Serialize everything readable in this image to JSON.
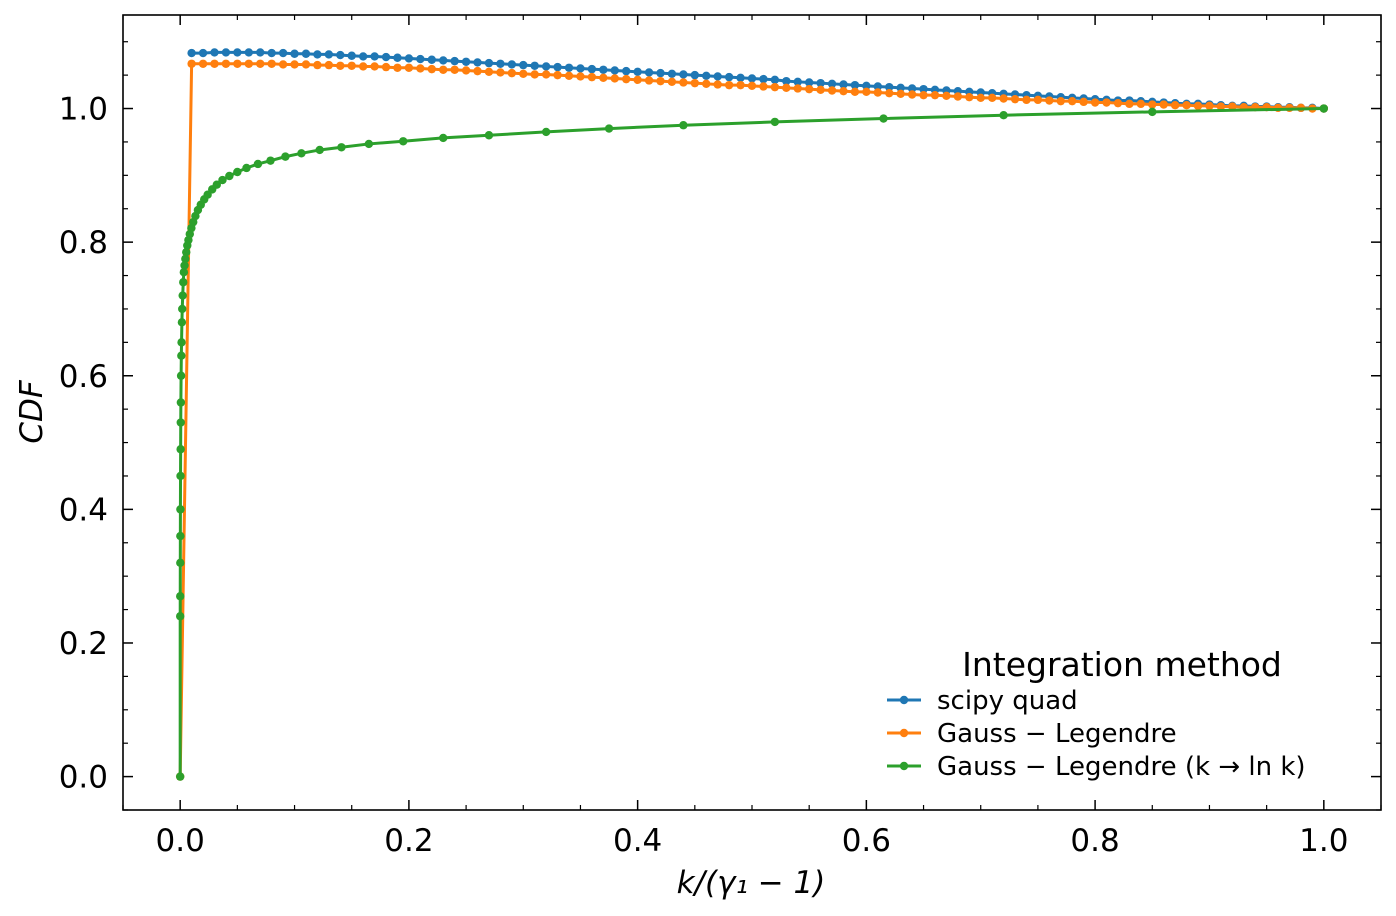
{
  "chart_data": {
    "type": "line",
    "xlabel": "k/(γ₁ − 1)",
    "ylabel": "CDF",
    "xlim": [
      -0.05,
      1.05
    ],
    "ylim": [
      -0.05,
      1.14
    ],
    "xticks": [
      "0.0",
      "0.2",
      "0.4",
      "0.6",
      "0.8",
      "1.0"
    ],
    "yticks": [
      "0.0",
      "0.2",
      "0.4",
      "0.6",
      "0.8",
      "1.0"
    ],
    "grid": false,
    "legend": {
      "title": "Integration method",
      "position": "lower-right"
    },
    "series": [
      {
        "name": "scipy quad",
        "color": "#1f77b4",
        "marker": "circle",
        "x": [
          0.01,
          0.02,
          0.03,
          0.04,
          0.05,
          0.06,
          0.07,
          0.08,
          0.09,
          0.1,
          0.11,
          0.12,
          0.13,
          0.14,
          0.15,
          0.16,
          0.17,
          0.18,
          0.19,
          0.2,
          0.21,
          0.22,
          0.23,
          0.24,
          0.25,
          0.26,
          0.27,
          0.28,
          0.29,
          0.3,
          0.31,
          0.32,
          0.33,
          0.34,
          0.35,
          0.36,
          0.37,
          0.38,
          0.39,
          0.4,
          0.41,
          0.42,
          0.43,
          0.44,
          0.45,
          0.46,
          0.47,
          0.48,
          0.49,
          0.5,
          0.51,
          0.52,
          0.53,
          0.54,
          0.55,
          0.56,
          0.57,
          0.58,
          0.59,
          0.6,
          0.61,
          0.62,
          0.63,
          0.64,
          0.65,
          0.66,
          0.67,
          0.68,
          0.69,
          0.7,
          0.71,
          0.72,
          0.73,
          0.74,
          0.75,
          0.76,
          0.77,
          0.78,
          0.79,
          0.8,
          0.81,
          0.82,
          0.83,
          0.84,
          0.85,
          0.86,
          0.87,
          0.88,
          0.89,
          0.9,
          0.91,
          0.92,
          0.93,
          0.94,
          0.95,
          0.96,
          0.97,
          0.98,
          0.99,
          1.0
        ],
        "y": [
          1.083,
          1.083,
          1.084,
          1.084,
          1.084,
          1.084,
          1.084,
          1.083,
          1.083,
          1.082,
          1.082,
          1.081,
          1.081,
          1.08,
          1.079,
          1.078,
          1.078,
          1.077,
          1.076,
          1.075,
          1.074,
          1.073,
          1.072,
          1.071,
          1.07,
          1.069,
          1.068,
          1.067,
          1.066,
          1.065,
          1.064,
          1.063,
          1.062,
          1.061,
          1.06,
          1.059,
          1.058,
          1.057,
          1.056,
          1.055,
          1.054,
          1.053,
          1.052,
          1.051,
          1.05,
          1.049,
          1.048,
          1.047,
          1.046,
          1.045,
          1.044,
          1.043,
          1.041,
          1.04,
          1.039,
          1.038,
          1.037,
          1.036,
          1.035,
          1.034,
          1.033,
          1.032,
          1.031,
          1.03,
          1.029,
          1.028,
          1.027,
          1.026,
          1.025,
          1.024,
          1.023,
          1.022,
          1.021,
          1.02,
          1.019,
          1.018,
          1.017,
          1.016,
          1.015,
          1.014,
          1.013,
          1.012,
          1.012,
          1.011,
          1.01,
          1.009,
          1.008,
          1.007,
          1.007,
          1.006,
          1.005,
          1.004,
          1.004,
          1.003,
          1.003,
          1.002,
          1.002,
          1.001,
          1.001,
          1.0
        ]
      },
      {
        "name": "Gauss − Legendre",
        "color": "#ff7f0e",
        "marker": "circle",
        "x": [
          0.0,
          0.01,
          0.02,
          0.03,
          0.04,
          0.05,
          0.06,
          0.07,
          0.08,
          0.09,
          0.1,
          0.11,
          0.12,
          0.13,
          0.14,
          0.15,
          0.16,
          0.17,
          0.18,
          0.19,
          0.2,
          0.21,
          0.22,
          0.23,
          0.24,
          0.25,
          0.26,
          0.27,
          0.28,
          0.29,
          0.3,
          0.31,
          0.32,
          0.33,
          0.34,
          0.35,
          0.36,
          0.37,
          0.38,
          0.39,
          0.4,
          0.41,
          0.42,
          0.43,
          0.44,
          0.45,
          0.46,
          0.47,
          0.48,
          0.49,
          0.5,
          0.51,
          0.52,
          0.53,
          0.54,
          0.55,
          0.56,
          0.57,
          0.58,
          0.59,
          0.6,
          0.61,
          0.62,
          0.63,
          0.64,
          0.65,
          0.66,
          0.67,
          0.68,
          0.69,
          0.7,
          0.71,
          0.72,
          0.73,
          0.74,
          0.75,
          0.76,
          0.77,
          0.78,
          0.79,
          0.8,
          0.81,
          0.82,
          0.83,
          0.84,
          0.85,
          0.86,
          0.87,
          0.88,
          0.89,
          0.9,
          0.91,
          0.92,
          0.93,
          0.94,
          0.95,
          0.96,
          0.97,
          0.98,
          0.99,
          1.0
        ],
        "y": [
          0.0,
          1.067,
          1.067,
          1.067,
          1.067,
          1.067,
          1.067,
          1.067,
          1.067,
          1.066,
          1.066,
          1.066,
          1.065,
          1.065,
          1.064,
          1.064,
          1.063,
          1.063,
          1.062,
          1.061,
          1.061,
          1.06,
          1.059,
          1.058,
          1.058,
          1.057,
          1.056,
          1.055,
          1.054,
          1.053,
          1.052,
          1.051,
          1.051,
          1.05,
          1.049,
          1.048,
          1.047,
          1.046,
          1.045,
          1.044,
          1.043,
          1.042,
          1.041,
          1.04,
          1.039,
          1.038,
          1.037,
          1.036,
          1.035,
          1.035,
          1.034,
          1.033,
          1.032,
          1.031,
          1.03,
          1.029,
          1.028,
          1.027,
          1.026,
          1.025,
          1.025,
          1.024,
          1.023,
          1.022,
          1.021,
          1.02,
          1.02,
          1.019,
          1.018,
          1.017,
          1.016,
          1.016,
          1.015,
          1.014,
          1.013,
          1.013,
          1.012,
          1.011,
          1.011,
          1.01,
          1.009,
          1.009,
          1.008,
          1.007,
          1.007,
          1.006,
          1.006,
          1.005,
          1.005,
          1.004,
          1.004,
          1.003,
          1.003,
          1.002,
          1.002,
          1.002,
          1.001,
          1.001,
          1.001,
          1.0,
          1.0
        ]
      },
      {
        "name": "Gauss − Legendre (k → ln k)",
        "color": "#2ca02c",
        "marker": "circle",
        "x": [
          0.0,
          2e-05,
          5e-05,
          0.0001,
          0.00015,
          0.0002,
          0.0003,
          0.0004,
          0.0005,
          0.0006,
          0.0008,
          0.001,
          0.0012,
          0.0015,
          0.0018,
          0.0022,
          0.0027,
          0.0032,
          0.0038,
          0.0045,
          0.0053,
          0.0062,
          0.0072,
          0.0084,
          0.0098,
          0.0114,
          0.0133,
          0.0155,
          0.018,
          0.021,
          0.024,
          0.028,
          0.032,
          0.037,
          0.043,
          0.05,
          0.058,
          0.068,
          0.079,
          0.092,
          0.106,
          0.122,
          0.141,
          0.165,
          0.195,
          0.23,
          0.27,
          0.32,
          0.375,
          0.44,
          0.52,
          0.615,
          0.72,
          0.85,
          1.0
        ],
        "y": [
          0.0,
          0.24,
          0.27,
          0.32,
          0.36,
          0.4,
          0.45,
          0.49,
          0.53,
          0.56,
          0.6,
          0.63,
          0.65,
          0.68,
          0.7,
          0.72,
          0.74,
          0.755,
          0.765,
          0.775,
          0.785,
          0.795,
          0.803,
          0.812,
          0.821,
          0.83,
          0.839,
          0.848,
          0.856,
          0.864,
          0.871,
          0.879,
          0.886,
          0.893,
          0.899,
          0.905,
          0.911,
          0.917,
          0.922,
          0.928,
          0.933,
          0.938,
          0.942,
          0.947,
          0.951,
          0.956,
          0.96,
          0.965,
          0.97,
          0.975,
          0.98,
          0.985,
          0.99,
          0.995,
          1.0
        ]
      }
    ]
  }
}
